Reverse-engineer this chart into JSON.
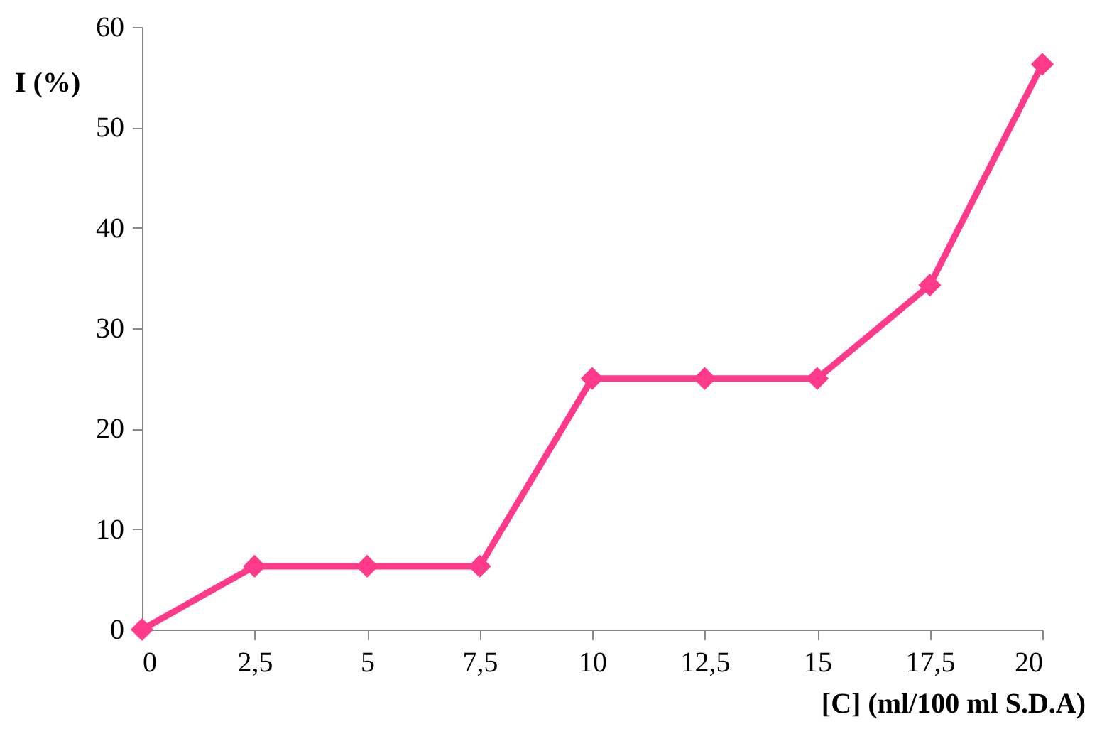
{
  "chart_data": {
    "type": "line",
    "xlabel": "[C] (ml/100 ml S.D.A)",
    "ylabel": "I (%)",
    "x": [
      0,
      2.5,
      5,
      7.5,
      10,
      12.5,
      15,
      17.5,
      20
    ],
    "series": [
      {
        "color": "#ff3a8a",
        "values": [
          0,
          6.3,
          6.3,
          6.3,
          25,
          25,
          25,
          34.3,
          56.3
        ]
      }
    ],
    "xlim": [
      0,
      20
    ],
    "xticks": [
      0,
      {
        "value": 2.5,
        "label": "2,5"
      },
      5,
      {
        "value": 7.5,
        "label": "7,5"
      },
      10,
      {
        "value": 12.5,
        "label": "12,5"
      },
      15,
      {
        "value": 17.5,
        "label": "17,5"
      },
      20
    ],
    "ylim": [
      0,
      60
    ],
    "yticks": [
      0,
      10,
      20,
      30,
      40,
      50,
      60
    ],
    "marker": "diamond",
    "line_style": "solid",
    "grid": false
  }
}
